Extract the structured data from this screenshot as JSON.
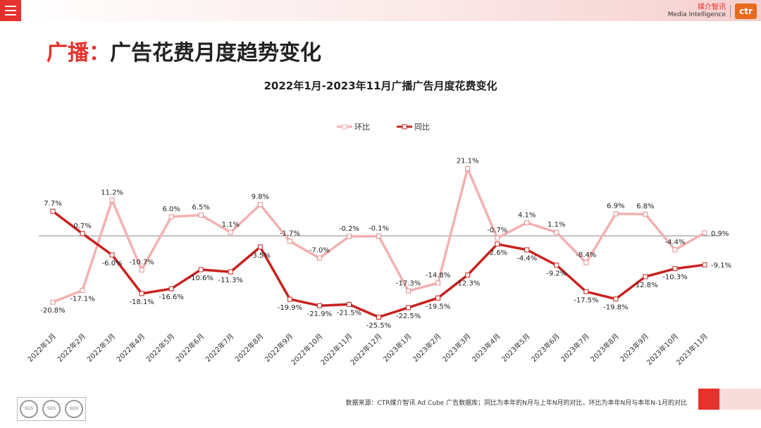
{
  "header": {
    "brand_cn": "媒介智讯",
    "brand_en": "Media Intelligence",
    "logo_text": "ctr"
  },
  "page": {
    "title_accent": "广播：",
    "title_rest": "广告花费月度趋势变化"
  },
  "footer": {
    "source": "数据来源：CTR媒介智讯 Ad Cube 广告数据库；同比为本年的N月与上年N月的对比，环比为本年N月与本年N-1月的对比",
    "cert_label": "SGS"
  },
  "colors": {
    "accent_red": "#e5322d",
    "series_mom": "#f4b0b0",
    "series_yoy": "#c8221f"
  },
  "chart_data": {
    "type": "line",
    "title": "2022年1月-2023年11月广播广告月度花费变化",
    "legend_position": "top",
    "grid": false,
    "ylim": [
      -35,
      30
    ],
    "value_unit": "%",
    "categories": [
      "2022年1月",
      "2022年2月",
      "2022年3月",
      "2022年4月",
      "2022年5月",
      "2022年6月",
      "2022年7月",
      "2022年8月",
      "2022年9月",
      "2022年10月",
      "2022年11月",
      "2022年12月",
      "2023年1月",
      "2023年2月",
      "2023年3月",
      "2023年4月",
      "2023年5月",
      "2023年6月",
      "2023年7月",
      "2023年8月",
      "2023年9月",
      "2023年10月",
      "2023年11月"
    ],
    "series": [
      {
        "name": "环比",
        "color": "#f4b0b0",
        "values": [
          -20.8,
          -17.1,
          11.2,
          -10.7,
          6.0,
          6.5,
          1.1,
          9.8,
          -1.7,
          -7.0,
          -0.2,
          -0.1,
          -17.3,
          -14.8,
          21.1,
          -0.7,
          4.1,
          1.1,
          -8.4,
          6.9,
          6.8,
          -4.4,
          0.9
        ]
      },
      {
        "name": "同比",
        "color": "#c8221f",
        "values": [
          7.7,
          0.7,
          -6.0,
          -18.1,
          -16.6,
          -10.6,
          -11.3,
          -3.5,
          -19.9,
          -21.9,
          -21.5,
          -25.5,
          -22.5,
          -19.5,
          -12.3,
          -2.6,
          -4.4,
          -9.2,
          -17.5,
          -19.8,
          -12.8,
          -10.3,
          -9.1
        ]
      }
    ]
  }
}
